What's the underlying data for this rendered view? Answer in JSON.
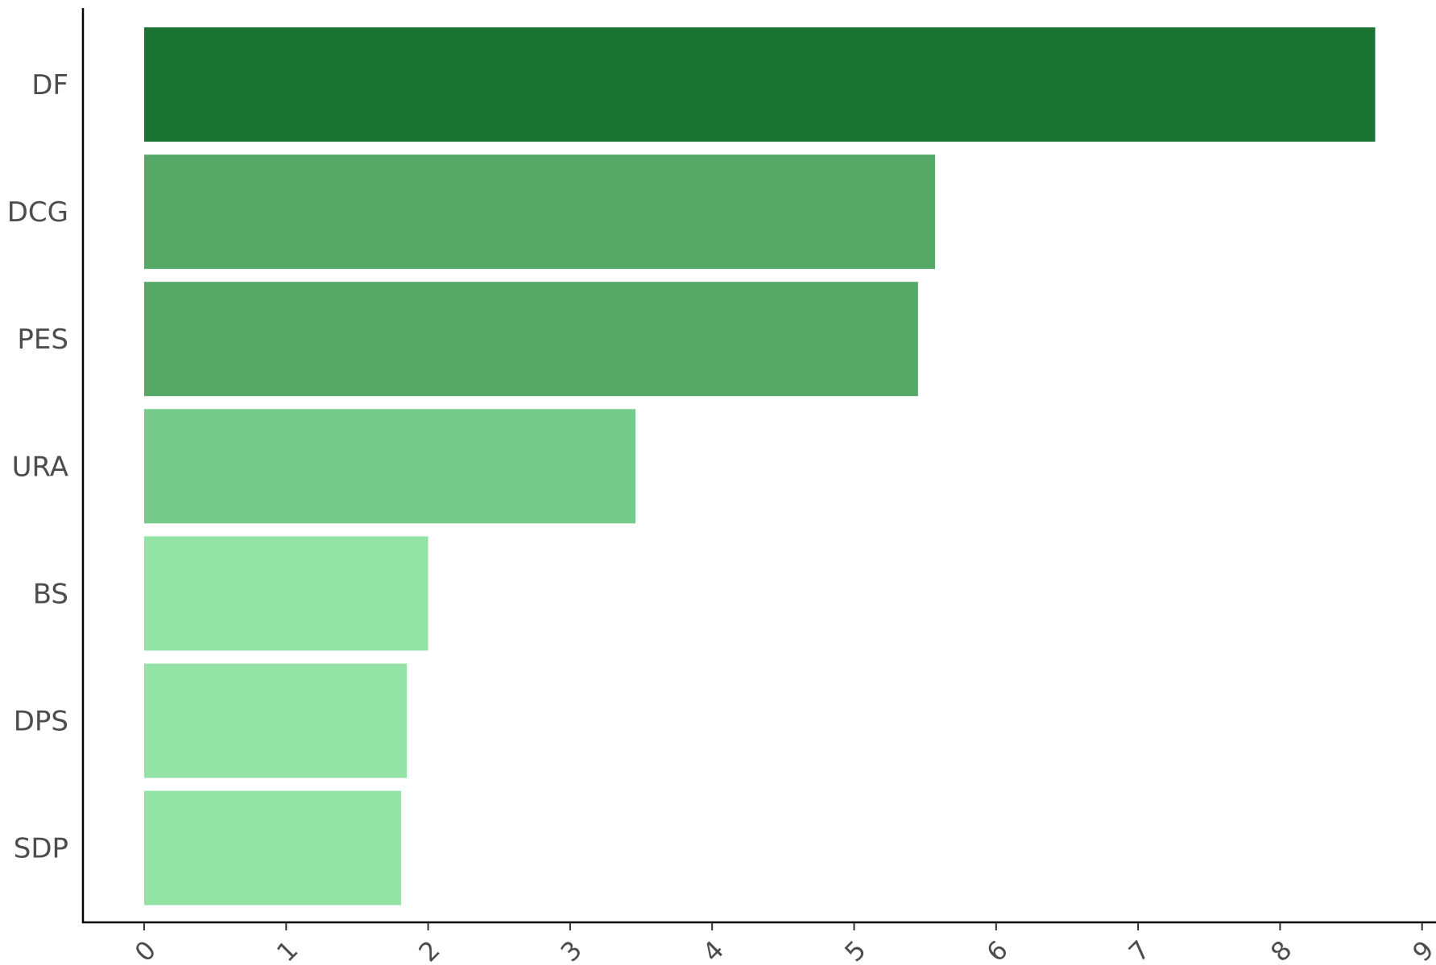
{
  "chart_data": {
    "type": "bar",
    "orientation": "horizontal",
    "categories": [
      "DF",
      "DCG",
      "PES",
      "URA",
      "BS",
      "DPS",
      "SDP"
    ],
    "values": [
      8.67,
      5.57,
      5.45,
      3.46,
      2.0,
      1.85,
      1.81
    ],
    "colors": [
      "#1b7433",
      "#55a866",
      "#55a866",
      "#76cb8a",
      "#93e3a6",
      "#93e3a6",
      "#93e3a6"
    ],
    "xlim": [
      0,
      9
    ],
    "xticks": [
      "0",
      "1",
      "2",
      "3",
      "4",
      "5",
      "6",
      "7",
      "8",
      "9"
    ],
    "title": "",
    "xlabel": "",
    "ylabel": "",
    "grid": false,
    "legend": "none"
  }
}
